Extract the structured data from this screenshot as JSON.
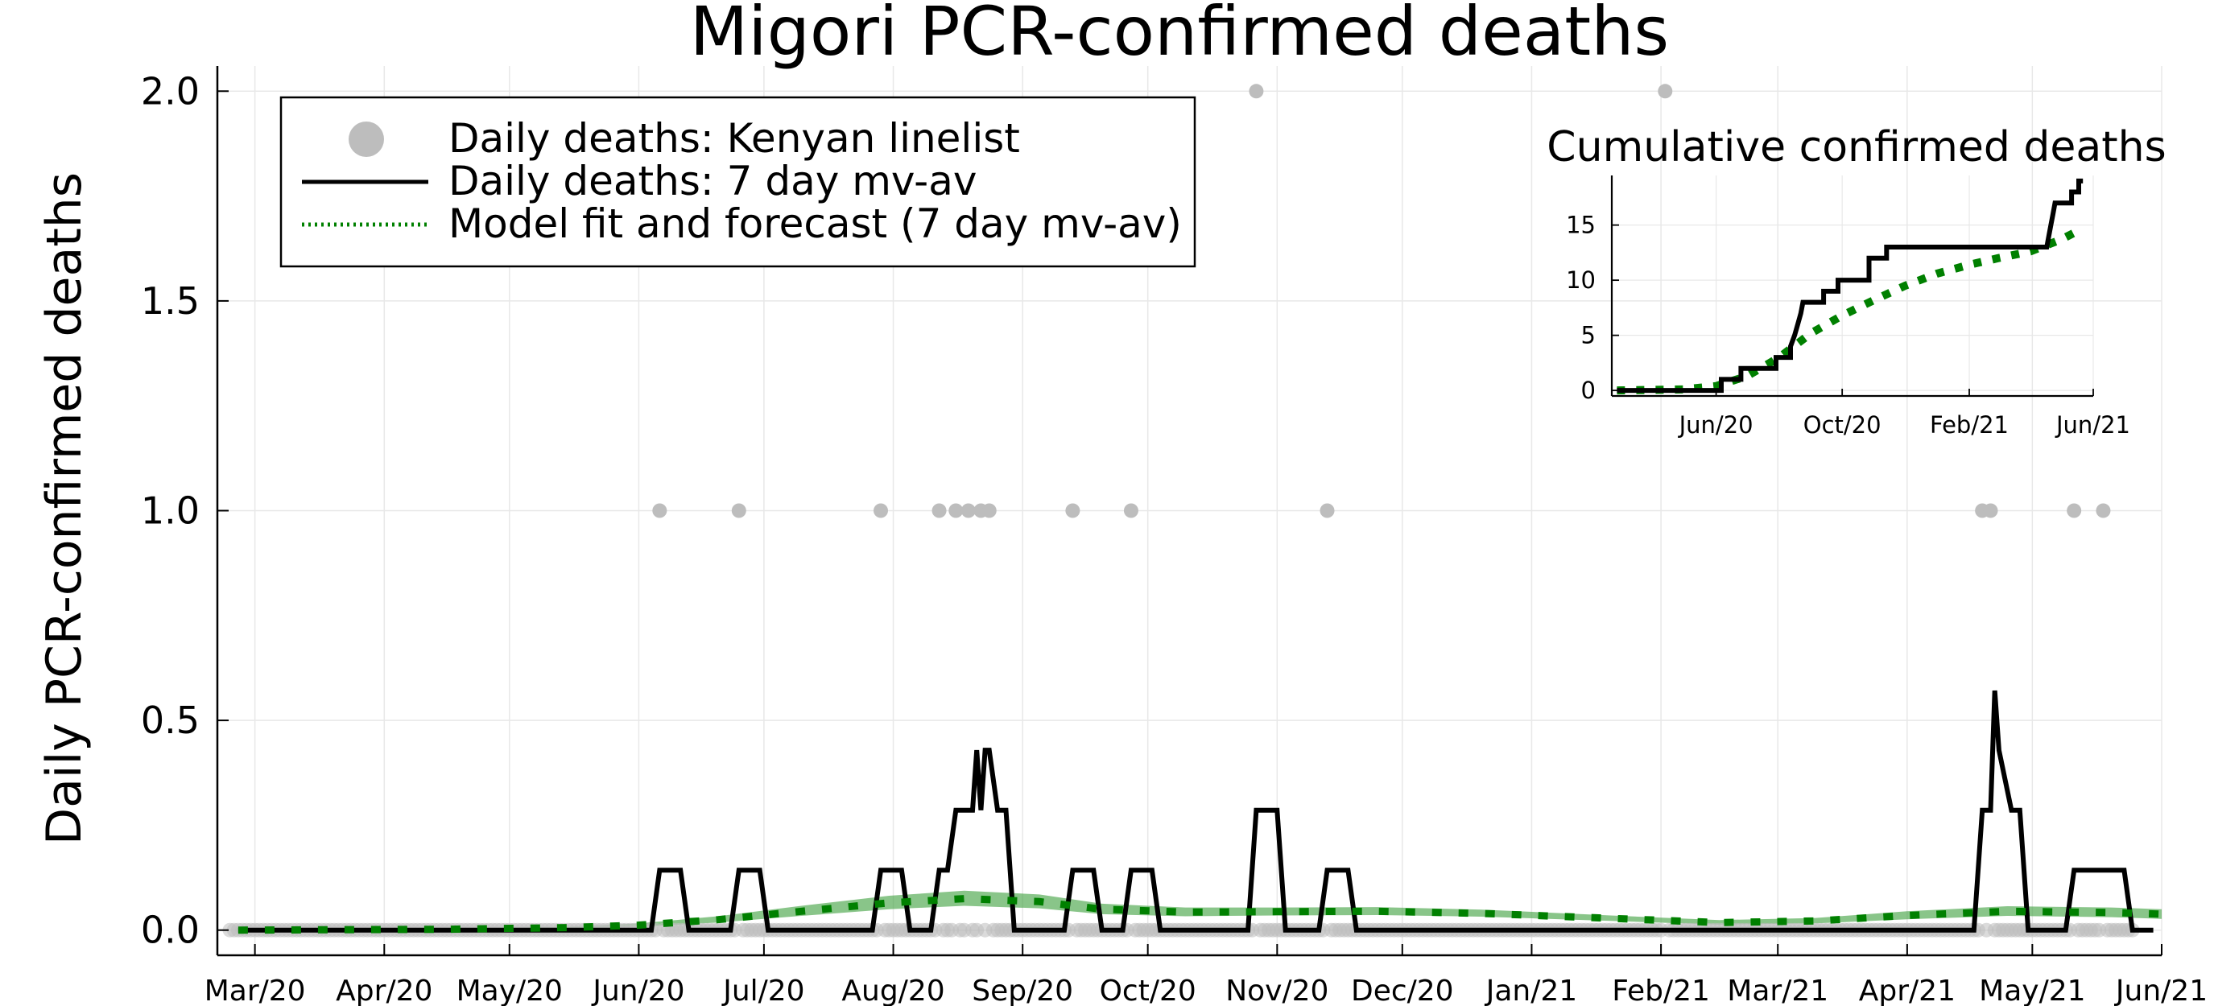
{
  "chart_data": [
    {
      "type": "line",
      "title": "Migori PCR-confirmed deaths",
      "xlabel": "",
      "ylabel": "Daily PCR-confirmed deaths",
      "xlim": [
        "2020-02-21",
        "2021-06-01"
      ],
      "ylim": [
        -0.06,
        2.06
      ],
      "xticks": [
        "Mar/20",
        "Apr/20",
        "May/20",
        "Jun/20",
        "Jul/20",
        "Aug/20",
        "Sep/20",
        "Oct/20",
        "Nov/20",
        "Dec/20",
        "Jan/21",
        "Feb/21",
        "Mar/21",
        "Apr/21",
        "May/21",
        "Jun/21"
      ],
      "xtick_dates": [
        "2020-03-01",
        "2020-04-01",
        "2020-05-01",
        "2020-06-01",
        "2020-07-01",
        "2020-08-01",
        "2020-09-01",
        "2020-10-01",
        "2020-11-01",
        "2020-12-01",
        "2021-01-01",
        "2021-02-01",
        "2021-03-01",
        "2021-04-01",
        "2021-05-01",
        "2021-06-01"
      ],
      "yticks": [
        0.0,
        0.5,
        1.0,
        1.5,
        2.0
      ],
      "ytick_labels": [
        "0.0",
        "0.5",
        "1.0",
        "1.5",
        "2.0"
      ],
      "grid": true,
      "legend_position": "top-left",
      "series": [
        {
          "name": "Daily deaths: Kenyan linelist",
          "kind": "scatter",
          "color": "#bdbdbd",
          "nonzero_points": [
            {
              "x": "2020-06-06",
              "y": 1
            },
            {
              "x": "2020-06-25",
              "y": 1
            },
            {
              "x": "2020-07-29",
              "y": 1
            },
            {
              "x": "2020-08-12",
              "y": 1
            },
            {
              "x": "2020-08-16",
              "y": 1
            },
            {
              "x": "2020-08-19",
              "y": 1
            },
            {
              "x": "2020-08-22",
              "y": 1
            },
            {
              "x": "2020-08-24",
              "y": 1
            },
            {
              "x": "2020-09-13",
              "y": 1
            },
            {
              "x": "2020-09-27",
              "y": 1
            },
            {
              "x": "2020-10-27",
              "y": 2
            },
            {
              "x": "2020-11-13",
              "y": 1
            },
            {
              "x": "2021-02-02",
              "y": 2
            },
            {
              "x": "2021-04-19",
              "y": 1
            },
            {
              "x": "2021-04-21",
              "y": 1
            },
            {
              "x": "2021-05-11",
              "y": 1
            },
            {
              "x": "2021-05-18",
              "y": 1
            }
          ],
          "zero_from": "2020-02-24",
          "zero_to": "2021-05-25",
          "zero_y": 0
        },
        {
          "name": "Daily deaths: 7 day mv-av",
          "kind": "line",
          "color": "#000000",
          "points": [
            {
              "x": "2020-02-26",
              "y": 0
            },
            {
              "x": "2020-06-04",
              "y": 0
            },
            {
              "x": "2020-06-06",
              "y": 0.143
            },
            {
              "x": "2020-06-11",
              "y": 0.143
            },
            {
              "x": "2020-06-13",
              "y": 0
            },
            {
              "x": "2020-06-23",
              "y": 0
            },
            {
              "x": "2020-06-25",
              "y": 0.143
            },
            {
              "x": "2020-06-30",
              "y": 0.143
            },
            {
              "x": "2020-07-02",
              "y": 0
            },
            {
              "x": "2020-07-27",
              "y": 0
            },
            {
              "x": "2020-07-29",
              "y": 0.143
            },
            {
              "x": "2020-08-03",
              "y": 0.143
            },
            {
              "x": "2020-08-05",
              "y": 0
            },
            {
              "x": "2020-08-10",
              "y": 0
            },
            {
              "x": "2020-08-12",
              "y": 0.143
            },
            {
              "x": "2020-08-14",
              "y": 0.143
            },
            {
              "x": "2020-08-16",
              "y": 0.286
            },
            {
              "x": "2020-08-20",
              "y": 0.286
            },
            {
              "x": "2020-08-21",
              "y": 0.429
            },
            {
              "x": "2020-08-22",
              "y": 0.286
            },
            {
              "x": "2020-08-23",
              "y": 0.429
            },
            {
              "x": "2020-08-24",
              "y": 0.429
            },
            {
              "x": "2020-08-26",
              "y": 0.286
            },
            {
              "x": "2020-08-28",
              "y": 0.286
            },
            {
              "x": "2020-08-30",
              "y": 0
            },
            {
              "x": "2020-09-11",
              "y": 0
            },
            {
              "x": "2020-09-13",
              "y": 0.143
            },
            {
              "x": "2020-09-18",
              "y": 0.143
            },
            {
              "x": "2020-09-20",
              "y": 0
            },
            {
              "x": "2020-09-25",
              "y": 0
            },
            {
              "x": "2020-09-27",
              "y": 0.143
            },
            {
              "x": "2020-10-02",
              "y": 0.143
            },
            {
              "x": "2020-10-04",
              "y": 0
            },
            {
              "x": "2020-10-25",
              "y": 0
            },
            {
              "x": "2020-10-27",
              "y": 0.286
            },
            {
              "x": "2020-11-01",
              "y": 0.286
            },
            {
              "x": "2020-11-03",
              "y": 0
            },
            {
              "x": "2020-11-11",
              "y": 0
            },
            {
              "x": "2020-11-13",
              "y": 0.143
            },
            {
              "x": "2020-11-18",
              "y": 0.143
            },
            {
              "x": "2020-11-20",
              "y": 0
            },
            {
              "x": "2021-04-17",
              "y": 0
            },
            {
              "x": "2021-04-19",
              "y": 0.286
            },
            {
              "x": "2021-04-21",
              "y": 0.286
            },
            {
              "x": "2021-04-22",
              "y": 0.571
            },
            {
              "x": "2021-04-23",
              "y": 0.429
            },
            {
              "x": "2021-04-26",
              "y": 0.286
            },
            {
              "x": "2021-04-28",
              "y": 0.286
            },
            {
              "x": "2021-04-30",
              "y": 0
            },
            {
              "x": "2021-05-09",
              "y": 0
            },
            {
              "x": "2021-05-11",
              "y": 0.143
            },
            {
              "x": "2021-05-23",
              "y": 0.143
            },
            {
              "x": "2021-05-25",
              "y": 0
            },
            {
              "x": "2021-05-30",
              "y": 0
            }
          ]
        },
        {
          "name": "Model fit and forecast (7 day mv-av)",
          "kind": "dotted-line",
          "color": "#008000",
          "band_color": "#3a9e3a",
          "points": [
            {
              "x": "2020-02-26",
              "y": 0.0
            },
            {
              "x": "2020-04-15",
              "y": 0.002
            },
            {
              "x": "2020-05-15",
              "y": 0.006
            },
            {
              "x": "2020-06-01",
              "y": 0.012
            },
            {
              "x": "2020-06-20",
              "y": 0.025
            },
            {
              "x": "2020-07-10",
              "y": 0.045
            },
            {
              "x": "2020-07-31",
              "y": 0.065
            },
            {
              "x": "2020-08-18",
              "y": 0.075
            },
            {
              "x": "2020-09-05",
              "y": 0.068
            },
            {
              "x": "2020-09-20",
              "y": 0.05
            },
            {
              "x": "2020-10-10",
              "y": 0.043
            },
            {
              "x": "2020-11-01",
              "y": 0.044
            },
            {
              "x": "2020-11-25",
              "y": 0.045
            },
            {
              "x": "2020-12-20",
              "y": 0.04
            },
            {
              "x": "2021-01-20",
              "y": 0.028
            },
            {
              "x": "2021-02-15",
              "y": 0.018
            },
            {
              "x": "2021-03-10",
              "y": 0.022
            },
            {
              "x": "2021-04-01",
              "y": 0.035
            },
            {
              "x": "2021-04-25",
              "y": 0.045
            },
            {
              "x": "2021-05-20",
              "y": 0.042
            },
            {
              "x": "2021-06-01",
              "y": 0.038
            }
          ],
          "band_lower": [
            0.0,
            0.001,
            0.004,
            0.008,
            0.018,
            0.034,
            0.05,
            0.058,
            0.052,
            0.038,
            0.033,
            0.035,
            0.036,
            0.032,
            0.022,
            0.013,
            0.016,
            0.026,
            0.034,
            0.031,
            0.027
          ],
          "band_upper": [
            0.0,
            0.003,
            0.008,
            0.016,
            0.033,
            0.058,
            0.082,
            0.094,
            0.085,
            0.063,
            0.054,
            0.054,
            0.055,
            0.049,
            0.035,
            0.024,
            0.029,
            0.045,
            0.057,
            0.054,
            0.05
          ]
        }
      ]
    },
    {
      "type": "line",
      "title": "Cumulative confirmed deaths",
      "xlabel": "",
      "ylabel": "",
      "xlim": [
        "2020-02-21",
        "2021-06-01"
      ],
      "ylim": [
        -0.5,
        19.5
      ],
      "xticks": [
        "Jun/20",
        "Oct/20",
        "Feb/21",
        "Jun/21"
      ],
      "xtick_dates": [
        "2020-06-01",
        "2020-10-01",
        "2021-02-01",
        "2021-06-01"
      ],
      "yticks": [
        0,
        5,
        10,
        15
      ],
      "ytick_labels": [
        "0",
        "5",
        "10",
        "15"
      ],
      "grid": true,
      "legend_position": "none",
      "series": [
        {
          "kind": "line",
          "color": "#000000",
          "points": [
            {
              "x": "2020-02-26",
              "y": 0
            },
            {
              "x": "2020-06-06",
              "y": 0
            },
            {
              "x": "2020-06-06",
              "y": 1
            },
            {
              "x": "2020-06-25",
              "y": 1
            },
            {
              "x": "2020-06-25",
              "y": 2
            },
            {
              "x": "2020-07-29",
              "y": 2
            },
            {
              "x": "2020-07-29",
              "y": 3
            },
            {
              "x": "2020-08-12",
              "y": 3
            },
            {
              "x": "2020-08-12",
              "y": 4
            },
            {
              "x": "2020-08-16",
              "y": 5
            },
            {
              "x": "2020-08-19",
              "y": 6
            },
            {
              "x": "2020-08-22",
              "y": 7
            },
            {
              "x": "2020-08-24",
              "y": 8
            },
            {
              "x": "2020-09-13",
              "y": 8
            },
            {
              "x": "2020-09-13",
              "y": 9
            },
            {
              "x": "2020-09-27",
              "y": 9
            },
            {
              "x": "2020-09-27",
              "y": 10
            },
            {
              "x": "2020-10-27",
              "y": 10
            },
            {
              "x": "2020-10-27",
              "y": 12
            },
            {
              "x": "2020-11-13",
              "y": 12
            },
            {
              "x": "2020-11-13",
              "y": 13
            },
            {
              "x": "2021-04-17",
              "y": 13
            },
            {
              "x": "2021-04-19",
              "y": 14
            },
            {
              "x": "2021-04-21",
              "y": 15
            },
            {
              "x": "2021-04-23",
              "y": 16
            },
            {
              "x": "2021-04-25",
              "y": 17
            },
            {
              "x": "2021-05-11",
              "y": 17
            },
            {
              "x": "2021-05-11",
              "y": 18
            },
            {
              "x": "2021-05-18",
              "y": 18
            },
            {
              "x": "2021-05-18",
              "y": 19
            },
            {
              "x": "2021-05-22",
              "y": 19
            }
          ]
        },
        {
          "kind": "dotted-line",
          "color": "#008000",
          "points": [
            {
              "x": "2020-02-26",
              "y": 0
            },
            {
              "x": "2020-05-01",
              "y": 0.1
            },
            {
              "x": "2020-06-01",
              "y": 0.4
            },
            {
              "x": "2020-07-01",
              "y": 1.3
            },
            {
              "x": "2020-08-01",
              "y": 3.0
            },
            {
              "x": "2020-09-01",
              "y": 5.2
            },
            {
              "x": "2020-10-01",
              "y": 6.8
            },
            {
              "x": "2020-11-01",
              "y": 8.2
            },
            {
              "x": "2020-12-01",
              "y": 9.5
            },
            {
              "x": "2021-01-01",
              "y": 10.6
            },
            {
              "x": "2021-02-01",
              "y": 11.4
            },
            {
              "x": "2021-03-01",
              "y": 12.0
            },
            {
              "x": "2021-04-01",
              "y": 12.6
            },
            {
              "x": "2021-05-01",
              "y": 13.7
            },
            {
              "x": "2021-05-22",
              "y": 14.7
            }
          ]
        }
      ]
    }
  ]
}
